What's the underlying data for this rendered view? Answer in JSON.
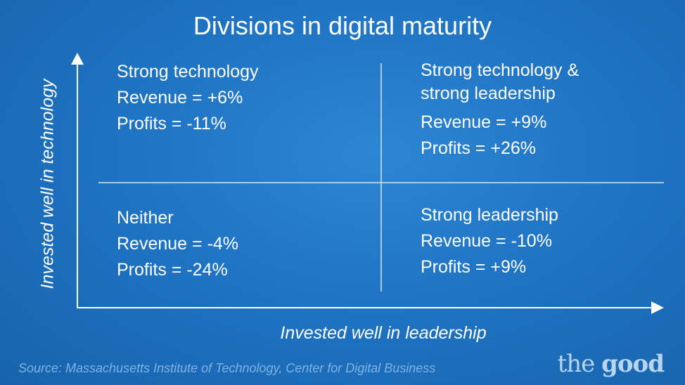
{
  "title": "Divisions in digital maturity",
  "y_axis_label": "Invested well in technology",
  "x_axis_label": "Invested well in leadership",
  "quadrants": {
    "top_left": {
      "heading": "Strong technology",
      "revenue": "Revenue = +6%",
      "profits": "Profits = -11%"
    },
    "top_right": {
      "heading_line1": "Strong technology &",
      "heading_line2": "strong leadership",
      "revenue": "Revenue = +9%",
      "profits": "Profits = +26%"
    },
    "bottom_left": {
      "heading": "Neither",
      "revenue": "Revenue = -4%",
      "profits": "Profits = -24%"
    },
    "bottom_right": {
      "heading": "Strong leadership",
      "revenue": "Revenue = -10%",
      "profits": "Profits = +9%"
    }
  },
  "source": "Source: Massachusetts Institute of Technology, Center for Digital Business",
  "brand": {
    "the": "the",
    "good": "good"
  },
  "colors": {
    "background": "#1f74c3",
    "text": "#ffffff",
    "source_text": "#7fb2e2"
  }
}
